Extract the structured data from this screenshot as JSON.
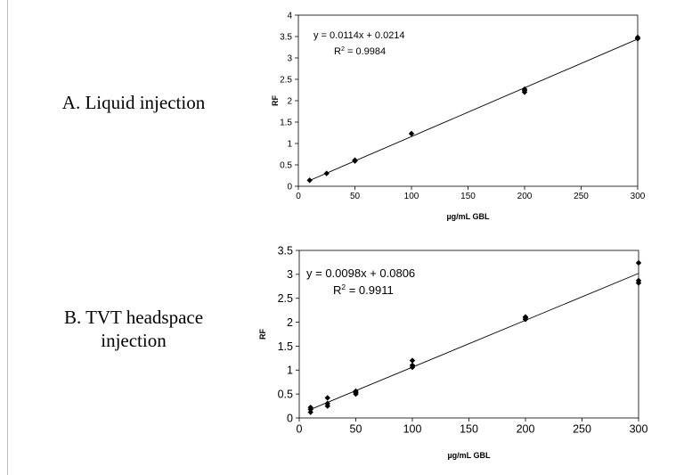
{
  "panels": [
    {
      "label": "A. Liquid injection"
    },
    {
      "label_line1": "B. TVT headspace",
      "label_line2": "injection"
    }
  ],
  "chart_data": [
    {
      "type": "scatter",
      "xlabel": "µg/mL GBL",
      "ylabel": "RF",
      "xlim": [
        0,
        300
      ],
      "ylim": [
        0,
        4
      ],
      "xticks": [
        "0",
        "50",
        "100",
        "150",
        "200",
        "250",
        "300"
      ],
      "yticks": [
        "0",
        "0.5",
        "1",
        "1.5",
        "2",
        "2.5",
        "3",
        "3.5",
        "4"
      ],
      "grid": false,
      "marker_color": "#000000",
      "points": [
        {
          "x": 10,
          "y": 0.14
        },
        {
          "x": 25,
          "y": 0.3
        },
        {
          "x": 50,
          "y": 0.59
        },
        {
          "x": 50,
          "y": 0.61
        },
        {
          "x": 100,
          "y": 1.23
        },
        {
          "x": 200,
          "y": 2.2
        },
        {
          "x": 200,
          "y": 2.24
        },
        {
          "x": 200,
          "y": 2.27
        },
        {
          "x": 300,
          "y": 3.45
        },
        {
          "x": 300,
          "y": 3.48
        }
      ],
      "trendline": {
        "slope": 0.0114,
        "intercept": 0.0214,
        "x_range": [
          10,
          300
        ]
      },
      "annotations": {
        "equation": "y = 0.0114x + 0.0214",
        "r2_prefix": "R",
        "r2_suffix": " = 0.9984"
      }
    },
    {
      "type": "scatter",
      "xlabel": "µg/mL GBL",
      "ylabel": "RF",
      "xlim": [
        0,
        300
      ],
      "ylim": [
        0,
        3.5
      ],
      "xticks": [
        "0",
        "50",
        "100",
        "150",
        "200",
        "250",
        "300"
      ],
      "yticks": [
        "0",
        "0.5",
        "1",
        "1.5",
        "2",
        "2.5",
        "3",
        "3.5"
      ],
      "grid": false,
      "marker_color": "#000000",
      "points": [
        {
          "x": 10,
          "y": 0.12
        },
        {
          "x": 10,
          "y": 0.18
        },
        {
          "x": 10,
          "y": 0.22
        },
        {
          "x": 25,
          "y": 0.25
        },
        {
          "x": 25,
          "y": 0.3
        },
        {
          "x": 25,
          "y": 0.42
        },
        {
          "x": 50,
          "y": 0.5
        },
        {
          "x": 50,
          "y": 0.53
        },
        {
          "x": 50,
          "y": 0.56
        },
        {
          "x": 100,
          "y": 1.06
        },
        {
          "x": 100,
          "y": 1.1
        },
        {
          "x": 100,
          "y": 1.2
        },
        {
          "x": 200,
          "y": 2.06
        },
        {
          "x": 200,
          "y": 2.09
        },
        {
          "x": 200,
          "y": 2.11
        },
        {
          "x": 300,
          "y": 2.82
        },
        {
          "x": 300,
          "y": 2.87
        },
        {
          "x": 300,
          "y": 3.24
        }
      ],
      "trendline": {
        "slope": 0.0098,
        "intercept": 0.0806,
        "x_range": [
          10,
          300
        ]
      },
      "annotations": {
        "equation": "y = 0.0098x + 0.0806",
        "r2_prefix": "R",
        "r2_suffix": " = 0.9911"
      }
    }
  ]
}
